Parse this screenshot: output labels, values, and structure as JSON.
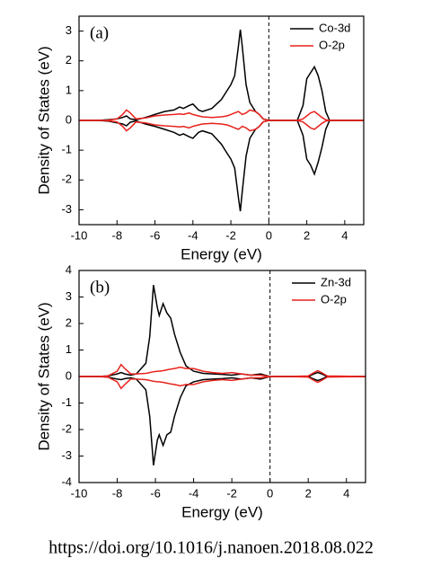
{
  "chart_data": [
    {
      "type": "line",
      "label": "(a)",
      "x_label": "Energy (eV)",
      "y_label": "Density of States (eV)",
      "xlim": [
        -10,
        5
      ],
      "xticks": [
        -10,
        -8,
        -6,
        -4,
        -2,
        0,
        2,
        4
      ],
      "ylim": [
        -3.5,
        3.5
      ],
      "yticks": [
        -3,
        -2,
        -1,
        0,
        1,
        2,
        3
      ],
      "grid": false,
      "legend": "top-right",
      "vline": 0,
      "x": [
        -10,
        -9,
        -8.5,
        -8,
        -7.7,
        -7.5,
        -7.3,
        -7,
        -6.5,
        -6,
        -5.5,
        -5,
        -4.7,
        -4.5,
        -4.2,
        -4,
        -3.7,
        -3.5,
        -3,
        -2.5,
        -2.2,
        -2,
        -1.8,
        -1.6,
        -1.5,
        -1.4,
        -1.2,
        -1,
        -0.7,
        -0.5,
        -0.3,
        0,
        1.5,
        1.8,
        2,
        2.2,
        2.4,
        2.6,
        2.8,
        3,
        3.2,
        5
      ],
      "series": [
        {
          "name": "Co-3d",
          "color": "#000000",
          "values": [
            0,
            0,
            0.02,
            0.05,
            0.1,
            0.15,
            0.05,
            0.02,
            0.1,
            0.2,
            0.3,
            0.35,
            0.45,
            0.4,
            0.5,
            0.55,
            0.35,
            0.3,
            0.4,
            0.7,
            1.0,
            1.2,
            1.5,
            2.5,
            3.05,
            2.5,
            1.2,
            0.6,
            0.3,
            0.2,
            0.05,
            0,
            0,
            0.5,
            1.4,
            1.6,
            1.8,
            1.5,
            1.0,
            0.3,
            0,
            0
          ],
          "values_down": [
            0,
            0,
            -0.02,
            -0.08,
            -0.12,
            -0.18,
            -0.06,
            -0.02,
            -0.12,
            -0.2,
            -0.3,
            -0.4,
            -0.5,
            -0.45,
            -0.55,
            -0.6,
            -0.4,
            -0.35,
            -0.45,
            -0.8,
            -1.1,
            -1.3,
            -1.6,
            -2.6,
            -3.05,
            -2.4,
            -1.2,
            -0.6,
            -0.3,
            -0.2,
            -0.05,
            0,
            0,
            -0.5,
            -1.3,
            -1.5,
            -1.8,
            -1.4,
            -0.9,
            -0.3,
            0,
            0
          ]
        },
        {
          "name": "O-2p",
          "color": "#e8221c",
          "values": [
            0,
            0,
            0.01,
            0.05,
            0.2,
            0.35,
            0.25,
            0.05,
            0.08,
            0.15,
            0.18,
            0.2,
            0.22,
            0.2,
            0.25,
            0.2,
            0.15,
            0.12,
            0.1,
            0.12,
            0.15,
            0.2,
            0.25,
            0.3,
            0.25,
            0.2,
            0.25,
            0.35,
            0.3,
            0.2,
            0.05,
            0,
            0,
            0.05,
            0.15,
            0.25,
            0.3,
            0.2,
            0.1,
            0.02,
            0,
            0
          ],
          "values_down": [
            0,
            0,
            -0.01,
            -0.05,
            -0.2,
            -0.35,
            -0.25,
            -0.05,
            -0.08,
            -0.15,
            -0.18,
            -0.2,
            -0.22,
            -0.2,
            -0.25,
            -0.2,
            -0.15,
            -0.12,
            -0.1,
            -0.12,
            -0.15,
            -0.2,
            -0.25,
            -0.3,
            -0.25,
            -0.2,
            -0.25,
            -0.35,
            -0.3,
            -0.2,
            -0.05,
            0,
            0,
            -0.05,
            -0.15,
            -0.25,
            -0.3,
            -0.2,
            -0.1,
            -0.02,
            0,
            0
          ]
        }
      ]
    },
    {
      "type": "line",
      "label": "(b)",
      "x_label": "Energy (eV)",
      "y_label": "Density of States (eV)",
      "xlim": [
        -10,
        5
      ],
      "xticks": [
        -10,
        -8,
        -6,
        -4,
        -2,
        0,
        2,
        4
      ],
      "ylim": [
        -4,
        4
      ],
      "yticks": [
        -4,
        -3,
        -2,
        -1,
        0,
        1,
        2,
        3,
        4
      ],
      "grid": false,
      "legend": "top-right",
      "vline": 0,
      "x": [
        -10,
        -9,
        -8.5,
        -8,
        -7.8,
        -7.6,
        -7.3,
        -7,
        -6.5,
        -6.3,
        -6.1,
        -5.9,
        -5.8,
        -5.6,
        -5.4,
        -5.2,
        -5,
        -4.7,
        -4.4,
        -4,
        -3.5,
        -3,
        -2.5,
        -2,
        -1.5,
        -1,
        -0.5,
        0,
        1,
        2,
        2.3,
        2.5,
        2.7,
        3,
        5
      ],
      "series": [
        {
          "name": "Zn-3d",
          "color": "#000000",
          "values": [
            0,
            0,
            0.02,
            0.1,
            0.15,
            0.1,
            0.05,
            0.1,
            0.5,
            1.5,
            3.45,
            2.6,
            2.3,
            2.75,
            2.4,
            2.2,
            1.6,
            0.9,
            0.4,
            0.2,
            0.12,
            0.1,
            0.08,
            0.05,
            0.1,
            0.05,
            0.1,
            0,
            0,
            0,
            0.1,
            0.15,
            0.1,
            0,
            0
          ],
          "values_down": [
            0,
            0,
            -0.02,
            -0.1,
            -0.12,
            -0.08,
            -0.05,
            -0.1,
            -0.5,
            -1.5,
            -3.35,
            -2.4,
            -2.2,
            -2.6,
            -2.2,
            -2.1,
            -1.5,
            -0.8,
            -0.35,
            -0.2,
            -0.12,
            -0.1,
            -0.08,
            -0.05,
            -0.1,
            -0.05,
            -0.1,
            0,
            0,
            0,
            -0.1,
            -0.15,
            -0.1,
            0,
            0
          ]
        },
        {
          "name": "O-2p",
          "color": "#e8221c",
          "values": [
            0,
            0,
            0.02,
            0.2,
            0.45,
            0.3,
            0.1,
            0.1,
            0.12,
            0.15,
            0.18,
            0.2,
            0.2,
            0.22,
            0.25,
            0.28,
            0.3,
            0.35,
            0.3,
            0.3,
            0.2,
            0.15,
            0.12,
            0.15,
            0.1,
            0.05,
            0.05,
            0,
            0,
            0.02,
            0.15,
            0.22,
            0.15,
            0.02,
            0
          ],
          "values_down": [
            0,
            0,
            -0.02,
            -0.2,
            -0.45,
            -0.3,
            -0.1,
            -0.1,
            -0.12,
            -0.15,
            -0.18,
            -0.2,
            -0.2,
            -0.22,
            -0.25,
            -0.28,
            -0.3,
            -0.35,
            -0.3,
            -0.3,
            -0.2,
            -0.15,
            -0.12,
            -0.15,
            -0.1,
            -0.05,
            -0.05,
            0,
            0,
            -0.02,
            -0.15,
            -0.22,
            -0.15,
            -0.02,
            0
          ]
        }
      ]
    }
  ],
  "source": "https://doi.org/10.1016/j.nanoen.2018.08.022"
}
